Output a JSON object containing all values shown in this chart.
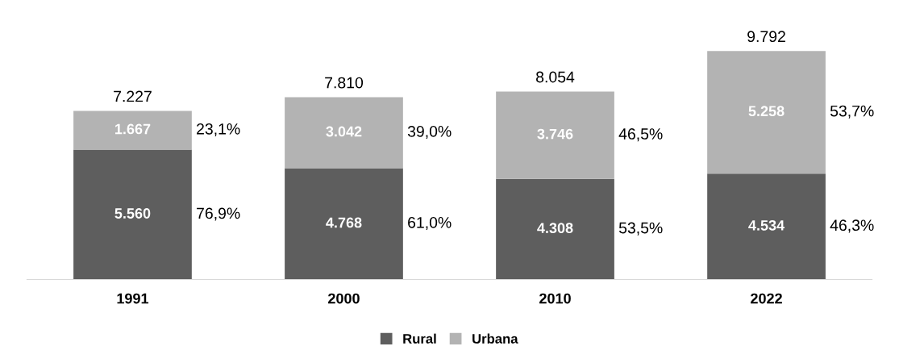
{
  "chart_data": {
    "type": "bar",
    "stacked": true,
    "categories": [
      "1991",
      "2000",
      "2010",
      "2022"
    ],
    "series": [
      {
        "name": "Rural",
        "color": "#5e5e5e",
        "values": [
          5560,
          4768,
          4308,
          4534
        ],
        "value_labels": [
          "5.560",
          "4.768",
          "4.308",
          "4.534"
        ]
      },
      {
        "name": "Urbana",
        "color": "#b3b3b3",
        "values": [
          1667,
          3042,
          3746,
          5258
        ],
        "value_labels": [
          "1.667",
          "3.042",
          "3.746",
          "5.258"
        ]
      }
    ],
    "totals": [
      "7.227",
      "7.810",
      "8.054",
      "9.792"
    ],
    "annotations": [
      "76,9%",
      "23,1%",
      "61,0%",
      "39,0%",
      "53,5%",
      "46,5%",
      "46,3%",
      "53,7%"
    ],
    "legend": "bottom",
    "grid": false,
    "tick_labels": "x"
  }
}
